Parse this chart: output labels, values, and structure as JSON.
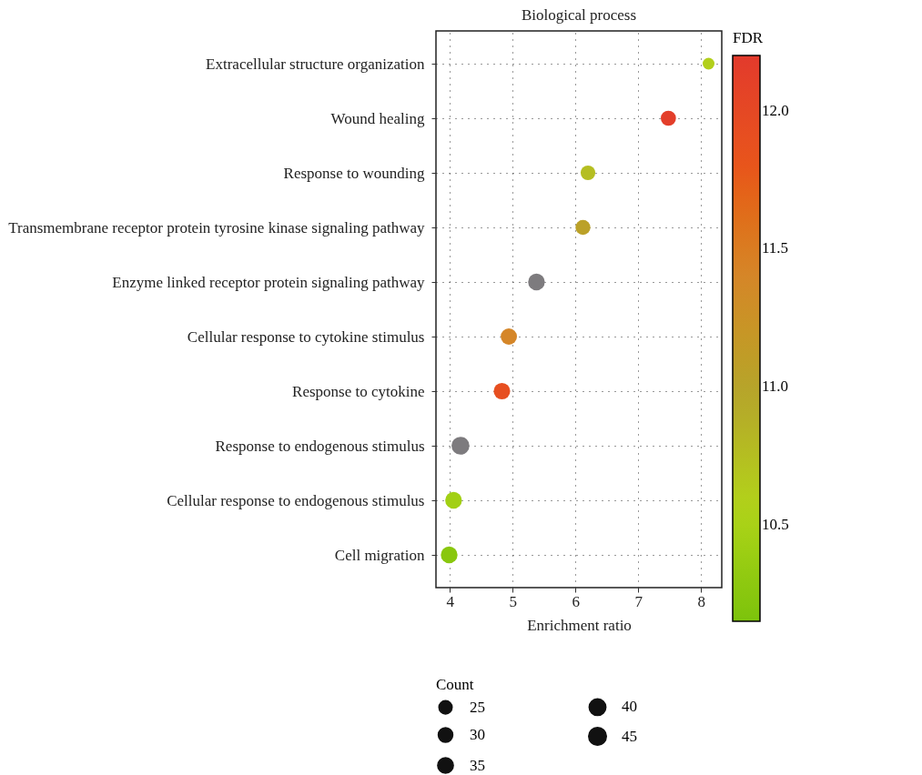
{
  "chart_data": {
    "type": "bubble",
    "orientation": "horizontal",
    "title": "Biological process",
    "xlabel": "Enrichment ratio",
    "clabel": "FDR",
    "legend_title": "Count",
    "categories": [
      "Extracellular structure organization",
      "Wound healing",
      "Response to wounding",
      "Transmembrane receptor protein tyrosine kinase signaling pathway",
      "Enzyme linked receptor protein signaling pathway",
      "Cellular response to cytokine stimulus",
      "Response to cytokine",
      "Response to endogenous stimulus",
      "Cellular response to endogenous stimulus",
      "Cell migration"
    ],
    "values": [
      8.12,
      7.48,
      6.2,
      6.12,
      5.38,
      4.94,
      4.83,
      4.17,
      4.06,
      3.99
    ],
    "cvalues": [
      10.6,
      12.15,
      10.75,
      11.05,
      null,
      11.4,
      11.9,
      null,
      10.45,
      10.25
    ],
    "sizes": [
      20,
      33,
      31,
      32,
      40,
      38,
      39,
      46,
      40,
      40
    ],
    "size_legend": [
      25,
      30,
      35,
      40,
      45
    ],
    "xlim": [
      3.78,
      8.33
    ],
    "xticks": [
      4,
      5,
      6,
      7,
      8
    ],
    "clim": [
      10.15,
      12.2
    ],
    "cticks": [
      {
        "value": 10.5,
        "label": "10.5"
      },
      {
        "value": 11,
        "label": "11.0"
      },
      {
        "value": 11.5,
        "label": "11.5"
      },
      {
        "value": 12,
        "label": "12.0"
      }
    ],
    "grid": true,
    "marker": "circle"
  }
}
